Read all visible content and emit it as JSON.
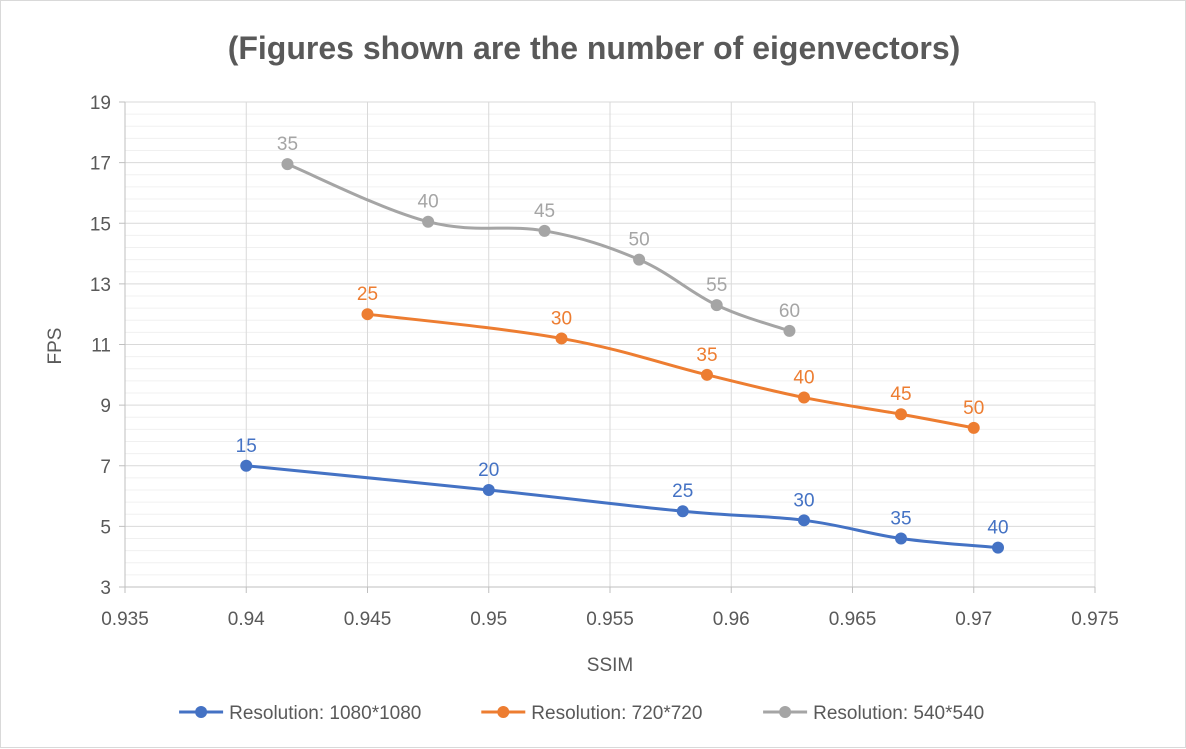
{
  "chart_data": {
    "type": "scatter",
    "title": "(Figures shown are the number of eigenvectors)",
    "xlabel": "SSIM",
    "ylabel": "FPS",
    "xlim": [
      0.935,
      0.975
    ],
    "ylim": [
      3,
      19
    ],
    "x_ticks": [
      0.935,
      0.94,
      0.945,
      0.95,
      0.955,
      0.96,
      0.965,
      0.97,
      0.975
    ],
    "y_ticks": [
      3,
      5,
      7,
      9,
      11,
      13,
      15,
      17,
      19
    ],
    "x_tick_labels": [
      "0.935",
      "0.94",
      "0.945",
      "0.95",
      "0.955",
      "0.96",
      "0.965",
      "0.97",
      "0.975"
    ],
    "y_tick_labels": [
      "3",
      "5",
      "7",
      "9",
      "11",
      "13",
      "15",
      "17",
      "19"
    ],
    "grid": true,
    "legend_position": "bottom",
    "series": [
      {
        "name": "Resolution: 1080*1080",
        "color": "#4472c4",
        "x": [
          0.94,
          0.95,
          0.958,
          0.963,
          0.967,
          0.971
        ],
        "y": [
          7.0,
          6.2,
          5.5,
          5.2,
          4.6,
          4.3
        ],
        "labels": [
          "15",
          "20",
          "25",
          "30",
          "35",
          "40"
        ]
      },
      {
        "name": "Resolution: 720*720",
        "color": "#ed7d31",
        "x": [
          0.945,
          0.953,
          0.959,
          0.963,
          0.967,
          0.97
        ],
        "y": [
          12.0,
          11.2,
          10.0,
          9.25,
          8.7,
          8.25
        ],
        "labels": [
          "25",
          "30",
          "35",
          "40",
          "45",
          "50"
        ]
      },
      {
        "name": "Resolution: 540*540",
        "color": "#a5a5a5",
        "x": [
          0.9417,
          0.9475,
          0.9523,
          0.9562,
          0.9594,
          0.9624
        ],
        "y": [
          16.95,
          15.05,
          14.75,
          13.8,
          12.3,
          11.45
        ],
        "labels": [
          "35",
          "40",
          "45",
          "50",
          "55",
          "60"
        ]
      }
    ]
  }
}
